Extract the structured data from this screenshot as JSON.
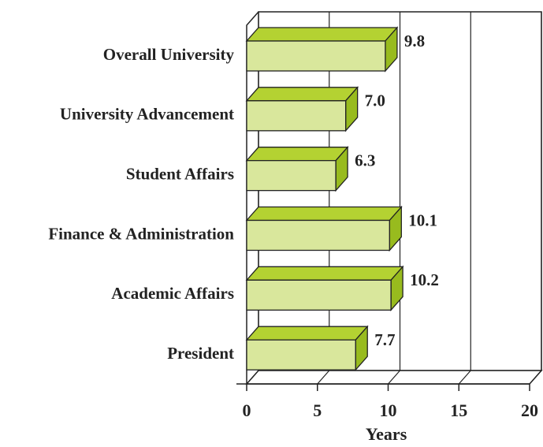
{
  "chart_data": {
    "type": "bar3d_horizontal",
    "categories": [
      "Overall University",
      "University Advancement",
      "Student Affairs",
      "Finance & Administration",
      "Academic Affairs",
      "President"
    ],
    "values": [
      9.8,
      7.0,
      6.3,
      10.1,
      10.2,
      7.7
    ],
    "value_labels": [
      "9.8",
      "7.0",
      "6.3",
      "10.1",
      "10.2",
      "7.7"
    ],
    "x_label": "Years",
    "xlim": [
      0,
      20
    ],
    "xticks": [
      0,
      5,
      10,
      15,
      20
    ],
    "color": "#d9e79c",
    "top_color": "#b4d232",
    "side_color": "#98bb1e",
    "grid": true
  }
}
